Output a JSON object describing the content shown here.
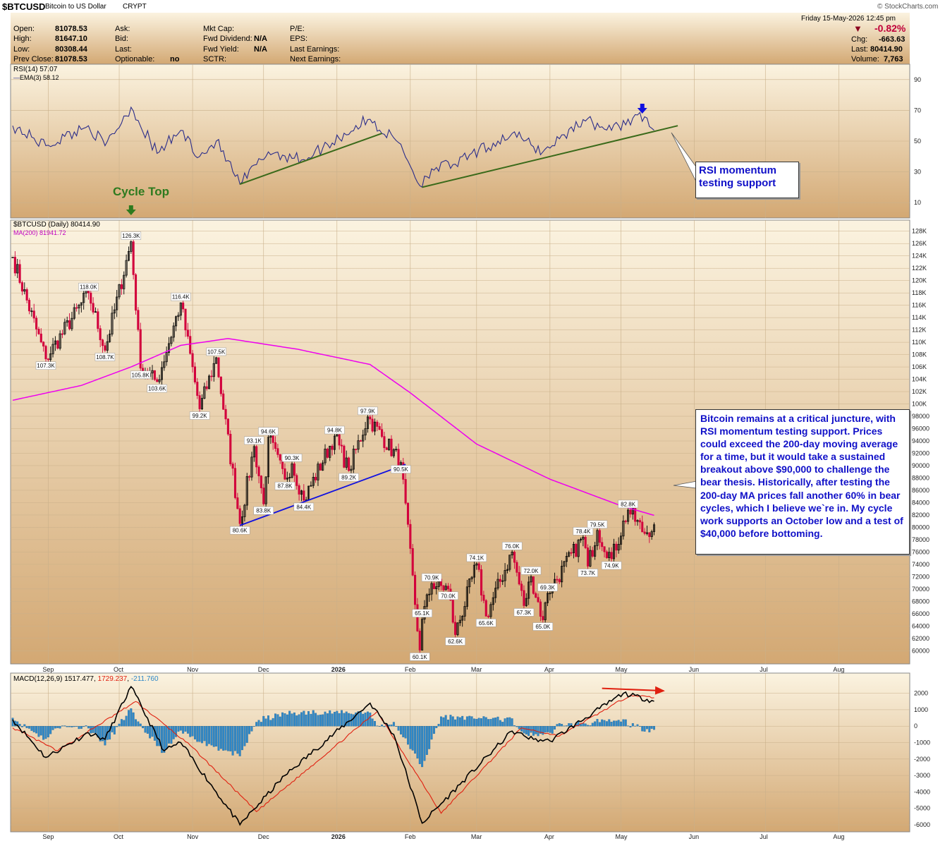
{
  "header": {
    "symbol": "$BTCUSD",
    "name": "Bitcoin to US Dollar",
    "exchange": "CRYPT",
    "date": "Friday  15-May-2026  12:45 pm",
    "watermark": "© StockCharts.com",
    "labels": {
      "open": "Open:",
      "high": "High:",
      "low": "Low:",
      "prev_close": "Prev Close:",
      "ask": "Ask:",
      "bid": "Bid:",
      "last": "Last:",
      "optionable": "Optionable:",
      "mkt_cap": "Mkt Cap:",
      "fwd_dividend": "Fwd Dividend:",
      "fwd_yield": "Fwd Yield:",
      "sctr": "SCTR:",
      "pe": "P/E:",
      "eps": "EPS:",
      "last_earnings": "Last Earnings:",
      "next_earnings": "Next Earnings:",
      "chg": "Chg:",
      "last_r": "Last:",
      "volume": "Volume:"
    },
    "values": {
      "open": "81078.53",
      "high": "81647.10",
      "low": "80308.44",
      "prev_close": "81078.53",
      "optionable": "no",
      "fwd_dividend": "N/A",
      "fwd_yield": "N/A",
      "pct_change": "-0.82%",
      "chg": "-663.63",
      "last": "80414.90",
      "volume": "7,763"
    }
  },
  "colors": {
    "panel_top": "#fcf5e4",
    "panel_bottom": "#d5ab78",
    "up_candle": "#000000",
    "down_candle": "#d2003c",
    "ma200": "#ee00ee",
    "rsi_line": "#2b2d8a",
    "trend_green": "#3a6a1a",
    "trend_blue": "#1010e0",
    "macd_line": "#000000",
    "signal_line": "#e02010",
    "histogram": "#2f88c8",
    "callout_text": "#1010c8",
    "cycle_top": "#2d7a1e"
  },
  "rsi_panel": {
    "legend_rsi": "RSI(14) 57.07",
    "legend_ema": "EMA(3) 58.12",
    "ticks": [
      "90",
      "70",
      "50",
      "30",
      "10"
    ]
  },
  "price_panel": {
    "legend_price": "$BTCUSD (Daily) 80414.90",
    "legend_ma": "MA(200) 81941.72",
    "ticks": [
      "128K",
      "126K",
      "124K",
      "122K",
      "120K",
      "118K",
      "116K",
      "114K",
      "112K",
      "110K",
      "108K",
      "106K",
      "104K",
      "102K",
      "100K",
      "98000",
      "96000",
      "94000",
      "92000",
      "90000",
      "88000",
      "86000",
      "84000",
      "82000",
      "80000",
      "78000",
      "76000",
      "74000",
      "72000",
      "70000",
      "68000",
      "66000",
      "64000",
      "62000",
      "60000"
    ]
  },
  "macd_panel": {
    "legend_label": "MACD(12,26,9)",
    "legend_macd": "1517.477",
    "legend_signal": "1729.237",
    "legend_hist": "-211.760",
    "ticks": [
      "2000",
      "1000",
      "0",
      "-1000",
      "-2000",
      "-3000",
      "-4000",
      "-5000",
      "-6000"
    ]
  },
  "months": [
    "Sep",
    "Oct",
    "Nov",
    "Dec",
    "2026",
    "Feb",
    "Mar",
    "Apr",
    "May",
    "Jun",
    "Jul",
    "Aug"
  ],
  "annotations": {
    "cycle_top": "Cycle Top",
    "rsi_callout": "RSI momentum\ntesting support",
    "main_callout": "Bitcoin remains at a critical juncture, with RSI momentum testing support. Prices could exceed the 200-day moving average for a time, but it would take a sustained breakout above $90,000 to challenge the bear thesis. Historically, after testing the 200-day MA prices fall another 60% in bear cycles, which I believe we`re in. My cycle work supports an October low and a test of $40,000 before bottoming."
  },
  "chart_data": {
    "type": "candlestick",
    "title": "$BTCUSD Bitcoin to US Dollar",
    "x_range": [
      "2025-08-17",
      "2026-08-31"
    ],
    "price_range": [
      59000,
      129000
    ],
    "swing_points": [
      {
        "date": "2025-08-17",
        "price": 123800
      },
      {
        "date": "2025-08-31",
        "price": 107300,
        "label": "107.3K"
      },
      {
        "date": "2025-09-18",
        "price": 118000,
        "label": "118.0K"
      },
      {
        "date": "2025-09-25",
        "price": 108700,
        "label": "108.7K"
      },
      {
        "date": "2025-10-06",
        "price": 126300,
        "label": "126.3K"
      },
      {
        "date": "2025-10-10",
        "price": 105800,
        "label": "105.8K"
      },
      {
        "date": "2025-10-17",
        "price": 103600,
        "label": "103.6K"
      },
      {
        "date": "2025-10-27",
        "price": 116400,
        "label": "116.4K"
      },
      {
        "date": "2025-11-04",
        "price": 99200,
        "label": "99.2K"
      },
      {
        "date": "2025-11-11",
        "price": 107500,
        "label": "107.5K"
      },
      {
        "date": "2025-11-21",
        "price": 80600,
        "label": "80.6K"
      },
      {
        "date": "2025-11-27",
        "price": 93100,
        "label": "93.1K"
      },
      {
        "date": "2025-12-01",
        "price": 83800,
        "label": "83.8K"
      },
      {
        "date": "2025-12-03",
        "price": 94600,
        "label": "94.6K"
      },
      {
        "date": "2025-12-10",
        "price": 87800,
        "label": "87.8K"
      },
      {
        "date": "2025-12-13",
        "price": 90300,
        "label": "90.3K"
      },
      {
        "date": "2025-12-18",
        "price": 84400,
        "label": "84.4K"
      },
      {
        "date": "2025-12-31",
        "price": 94800,
        "label": "94.8K"
      },
      {
        "date": "2026-01-06",
        "price": 89200,
        "label": "89.2K"
      },
      {
        "date": "2026-01-14",
        "price": 97900,
        "label": "97.9K"
      },
      {
        "date": "2026-01-28",
        "price": 90500,
        "label": "90.5K"
      },
      {
        "date": "2026-02-05",
        "price": 60100,
        "label": "60.1K"
      },
      {
        "date": "2026-02-06",
        "price": 65100,
        "label": "65.1K"
      },
      {
        "date": "2026-02-10",
        "price": 70900,
        "label": "70.9K"
      },
      {
        "date": "2026-02-17",
        "price": 70000,
        "label": "70.0K"
      },
      {
        "date": "2026-02-20",
        "price": 62600,
        "label": "62.6K"
      },
      {
        "date": "2026-03-01",
        "price": 74100,
        "label": "74.1K"
      },
      {
        "date": "2026-03-05",
        "price": 65600,
        "label": "65.6K"
      },
      {
        "date": "2026-03-16",
        "price": 76000,
        "label": "76.0K"
      },
      {
        "date": "2026-03-21",
        "price": 67300,
        "label": "67.3K"
      },
      {
        "date": "2026-03-24",
        "price": 72000,
        "label": "72.0K"
      },
      {
        "date": "2026-03-29",
        "price": 65000,
        "label": "65.0K"
      },
      {
        "date": "2026-03-31",
        "price": 69300,
        "label": "69.3K"
      },
      {
        "date": "2026-04-15",
        "price": 78400,
        "label": "78.4K"
      },
      {
        "date": "2026-04-17",
        "price": 73700,
        "label": "73.7K"
      },
      {
        "date": "2026-04-21",
        "price": 79500,
        "label": "79.5K"
      },
      {
        "date": "2026-04-27",
        "price": 74900,
        "label": "74.9K"
      },
      {
        "date": "2026-05-04",
        "price": 82800,
        "label": "82.8K"
      },
      {
        "date": "2026-05-11",
        "price": 79000
      },
      {
        "date": "2026-05-15",
        "price": 80414.9
      }
    ],
    "ma200": [
      {
        "date": "2025-08-17",
        "value": 100600
      },
      {
        "date": "2025-09-15",
        "value": 103000
      },
      {
        "date": "2025-10-06",
        "value": 106000
      },
      {
        "date": "2025-10-27",
        "value": 109500
      },
      {
        "date": "2025-11-16",
        "value": 110600
      },
      {
        "date": "2025-12-15",
        "value": 108900
      },
      {
        "date": "2026-01-15",
        "value": 106400
      },
      {
        "date": "2026-02-01",
        "value": 101800
      },
      {
        "date": "2026-03-01",
        "value": 93500
      },
      {
        "date": "2026-04-01",
        "value": 87800
      },
      {
        "date": "2026-05-01",
        "value": 83500
      },
      {
        "date": "2026-05-15",
        "value": 81941.72
      }
    ],
    "rsi": [
      {
        "date": "2025-08-17",
        "value": 60
      },
      {
        "date": "2025-08-31",
        "value": 47
      },
      {
        "date": "2025-09-18",
        "value": 60
      },
      {
        "date": "2025-09-25",
        "value": 47
      },
      {
        "date": "2025-10-06",
        "value": 72
      },
      {
        "date": "2025-10-17",
        "value": 42
      },
      {
        "date": "2025-10-27",
        "value": 57
      },
      {
        "date": "2025-11-04",
        "value": 40
      },
      {
        "date": "2025-11-11",
        "value": 50
      },
      {
        "date": "2025-11-21",
        "value": 22
      },
      {
        "date": "2025-12-03",
        "value": 43
      },
      {
        "date": "2025-12-18",
        "value": 38
      },
      {
        "date": "2026-01-14",
        "value": 64
      },
      {
        "date": "2026-01-28",
        "value": 48
      },
      {
        "date": "2026-02-05",
        "value": 21
      },
      {
        "date": "2026-02-10",
        "value": 32
      },
      {
        "date": "2026-02-20",
        "value": 35
      },
      {
        "date": "2026-03-16",
        "value": 55
      },
      {
        "date": "2026-03-29",
        "value": 43
      },
      {
        "date": "2026-04-15",
        "value": 64
      },
      {
        "date": "2026-04-27",
        "value": 57
      },
      {
        "date": "2026-05-08",
        "value": 67
      },
      {
        "date": "2026-05-15",
        "value": 57.07
      }
    ],
    "macd": [
      {
        "date": "2025-08-17",
        "value": 400
      },
      {
        "date": "2025-08-31",
        "value": -1900
      },
      {
        "date": "2025-09-18",
        "value": -400
      },
      {
        "date": "2025-09-25",
        "value": -800
      },
      {
        "date": "2025-10-06",
        "value": 2400
      },
      {
        "date": "2025-10-20",
        "value": -1500
      },
      {
        "date": "2025-10-27",
        "value": -1000
      },
      {
        "date": "2025-11-21",
        "value": -6000
      },
      {
        "date": "2025-12-10",
        "value": -3000
      },
      {
        "date": "2026-01-15",
        "value": 1400
      },
      {
        "date": "2026-01-25",
        "value": -500
      },
      {
        "date": "2026-02-06",
        "value": -5900
      },
      {
        "date": "2026-03-16",
        "value": -300
      },
      {
        "date": "2026-03-25",
        "value": -800
      },
      {
        "date": "2026-04-01",
        "value": -900
      },
      {
        "date": "2026-05-02",
        "value": 2000
      },
      {
        "date": "2026-05-15",
        "value": 1517.477
      }
    ],
    "macd_signal": [
      {
        "date": "2025-08-17",
        "value": -100
      },
      {
        "date": "2025-09-05",
        "value": -1500
      },
      {
        "date": "2025-10-08",
        "value": 1500
      },
      {
        "date": "2025-11-01",
        "value": -1300
      },
      {
        "date": "2025-11-28",
        "value": -5200
      },
      {
        "date": "2026-01-18",
        "value": 900
      },
      {
        "date": "2026-02-14",
        "value": -5300
      },
      {
        "date": "2026-03-20",
        "value": -100
      },
      {
        "date": "2026-04-05",
        "value": -600
      },
      {
        "date": "2026-05-05",
        "value": 1900
      },
      {
        "date": "2026-05-15",
        "value": 1729.237
      }
    ],
    "macd_histogram_last": -211.76,
    "rsi_ticks": [
      90,
      70,
      50,
      30,
      10
    ],
    "macd_range": [
      -6300,
      2800
    ]
  }
}
